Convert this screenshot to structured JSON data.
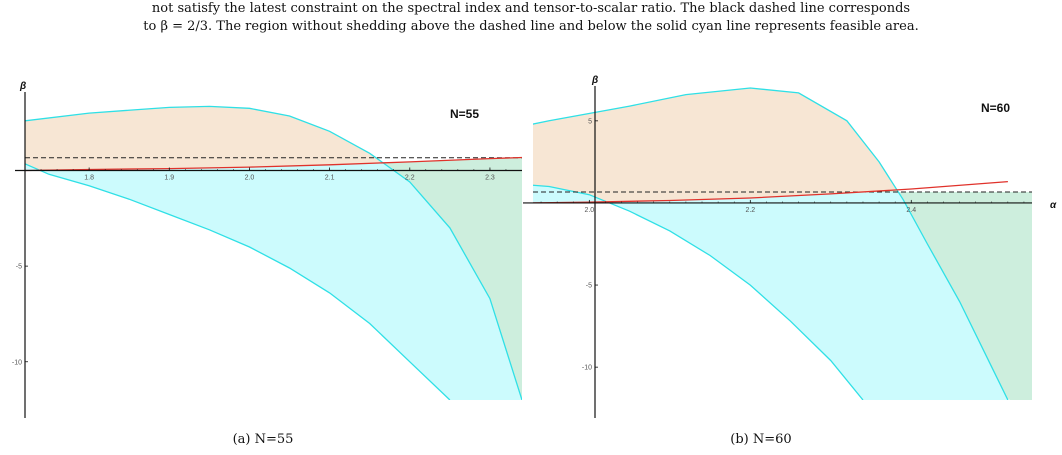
{
  "caption": {
    "line1": "not satisfy the latest constraint on the spectral index and tensor-to-scalar ratio. The black dashed line corresponds",
    "line2": "to β = 2/3. The region without shedding above the dashed line and below the solid cyan line represents feasible area."
  },
  "colors": {
    "orange_fill": "#f7e6d4",
    "cyan_fill": "#ccfbfd",
    "green_fill": "#cdeedd",
    "cyan_line": "#2fe0e6",
    "red_line": "#e0322b",
    "dashed_line": "#222222",
    "axis": "#111111"
  },
  "chart_data": [
    {
      "type": "area",
      "panel_caption": "(a) N=55",
      "annotation": "N=55",
      "xlabel": "",
      "ylabel": "β",
      "xlim": [
        1.72,
        2.34
      ],
      "ylim": [
        -12,
        4
      ],
      "x_ticks": [
        1.8,
        1.9,
        2.0,
        2.1,
        2.2,
        2.3
      ],
      "x_tick_labels": [
        "1.8",
        "1.9",
        "2.0",
        "2.1",
        "2.2",
        "2.3"
      ],
      "y_ticks": [
        -5,
        -10
      ],
      "y_tick_labels": [
        "-5",
        "-10"
      ],
      "dashed_line_beta": 0.6667,
      "curves": {
        "cyan_upper": [
          [
            1.72,
            2.6
          ],
          [
            1.8,
            3.0
          ],
          [
            1.9,
            3.3
          ],
          [
            1.95,
            3.35
          ],
          [
            2.0,
            3.25
          ],
          [
            2.05,
            2.85
          ],
          [
            2.1,
            2.05
          ],
          [
            2.15,
            0.9
          ],
          [
            2.2,
            -0.6
          ],
          [
            2.25,
            -3.0
          ],
          [
            2.3,
            -6.7
          ],
          [
            2.34,
            -12.0
          ]
        ],
        "cyan_lower": [
          [
            1.72,
            0.35
          ],
          [
            1.75,
            -0.2
          ],
          [
            1.8,
            -0.8
          ],
          [
            1.85,
            -1.5
          ],
          [
            1.9,
            -2.3
          ],
          [
            1.95,
            -3.1
          ],
          [
            2.0,
            -4.0
          ],
          [
            2.05,
            -5.1
          ],
          [
            2.1,
            -6.4
          ],
          [
            2.15,
            -8.0
          ],
          [
            2.2,
            -10.0
          ],
          [
            2.25,
            -12.0
          ]
        ],
        "red": [
          [
            1.72,
            0.0
          ],
          [
            1.8,
            0.05
          ],
          [
            1.9,
            0.1
          ],
          [
            2.0,
            0.18
          ],
          [
            2.1,
            0.3
          ],
          [
            2.2,
            0.45
          ],
          [
            2.3,
            0.62
          ],
          [
            2.34,
            0.68
          ]
        ]
      }
    },
    {
      "type": "area",
      "panel_caption": "(b) N=60",
      "annotation": "N=60",
      "xlabel": "α",
      "ylabel": "β",
      "xlim": [
        1.93,
        2.55
      ],
      "ylim": [
        -12,
        7
      ],
      "x_ticks": [
        2.0,
        2.2,
        2.4
      ],
      "x_tick_labels": [
        "2.0",
        "2.2",
        "2.4"
      ],
      "y_ticks": [
        5,
        -5,
        -10
      ],
      "y_tick_labels": [
        "5",
        "-5",
        "-10"
      ],
      "dashed_line_beta": 0.6667,
      "curves": {
        "cyan_upper": [
          [
            1.87,
            4.2
          ],
          [
            1.95,
            5.0
          ],
          [
            2.05,
            5.9
          ],
          [
            2.12,
            6.6
          ],
          [
            2.2,
            7.0
          ],
          [
            2.26,
            6.7
          ],
          [
            2.32,
            5.0
          ],
          [
            2.36,
            2.5
          ],
          [
            2.39,
            0.2
          ],
          [
            2.42,
            -2.5
          ],
          [
            2.46,
            -6.0
          ],
          [
            2.5,
            -10.0
          ],
          [
            2.52,
            -12.0
          ]
        ],
        "cyan_lower": [
          [
            1.87,
            1.3
          ],
          [
            1.95,
            1.0
          ],
          [
            2.0,
            0.5
          ],
          [
            2.05,
            -0.5
          ],
          [
            2.1,
            -1.7
          ],
          [
            2.15,
            -3.2
          ],
          [
            2.2,
            -5.0
          ],
          [
            2.25,
            -7.2
          ],
          [
            2.3,
            -9.6
          ],
          [
            2.34,
            -12.0
          ]
        ],
        "red": [
          [
            1.93,
            0.0
          ],
          [
            2.0,
            0.05
          ],
          [
            2.1,
            0.15
          ],
          [
            2.2,
            0.3
          ],
          [
            2.3,
            0.55
          ],
          [
            2.4,
            0.85
          ],
          [
            2.52,
            1.3
          ]
        ]
      }
    }
  ]
}
